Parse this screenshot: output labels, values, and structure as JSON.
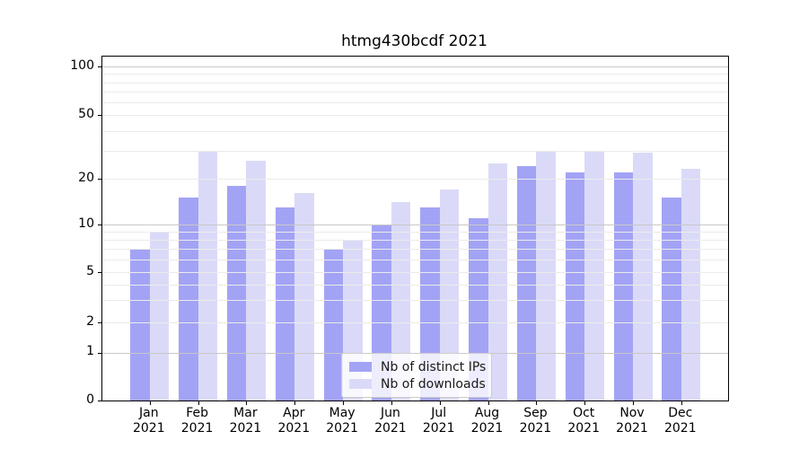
{
  "title": "htmg430bcdf 2021",
  "legend": {
    "items": [
      {
        "label": "Nb of distinct IPs",
        "color": "#a3a3f5"
      },
      {
        "label": "Nb of downloads",
        "color": "#dadaf8"
      }
    ]
  },
  "axis": {
    "y_tick_labels": [
      "0",
      "1",
      "2",
      "5",
      "10",
      "20",
      "50",
      "100"
    ],
    "x_year_line": "2021"
  },
  "chart_data": {
    "type": "bar",
    "title": "htmg430bcdf 2021",
    "categories": [
      "Jan 2021",
      "Feb 2021",
      "Mar 2021",
      "Apr 2021",
      "May 2021",
      "Jun 2021",
      "Jul 2021",
      "Aug 2021",
      "Sep 2021",
      "Oct 2021",
      "Nov 2021",
      "Dec 2021"
    ],
    "month_labels": [
      "Jan",
      "Feb",
      "Mar",
      "Apr",
      "May",
      "Jun",
      "Jul",
      "Aug",
      "Sep",
      "Oct",
      "Nov",
      "Dec"
    ],
    "series": [
      {
        "name": "Nb of distinct IPs",
        "color": "#a3a3f5",
        "values": [
          7,
          15,
          18,
          13,
          7,
          10,
          13,
          11,
          24,
          22,
          22,
          15
        ]
      },
      {
        "name": "Nb of downloads",
        "color": "#dadaf8",
        "values": [
          9,
          30,
          26,
          16,
          8,
          14,
          17,
          25,
          30,
          30,
          29,
          23
        ]
      }
    ],
    "xlabel": "",
    "ylabel": "",
    "y_scale": "symlog-like (compressed near zero)",
    "y_ticks": [
      0,
      1,
      2,
      5,
      10,
      20,
      50,
      100
    ],
    "ylim": [
      0,
      110
    ],
    "grid": "horizontal, major and minor, drawn over bars",
    "legend_position": "lower center"
  }
}
